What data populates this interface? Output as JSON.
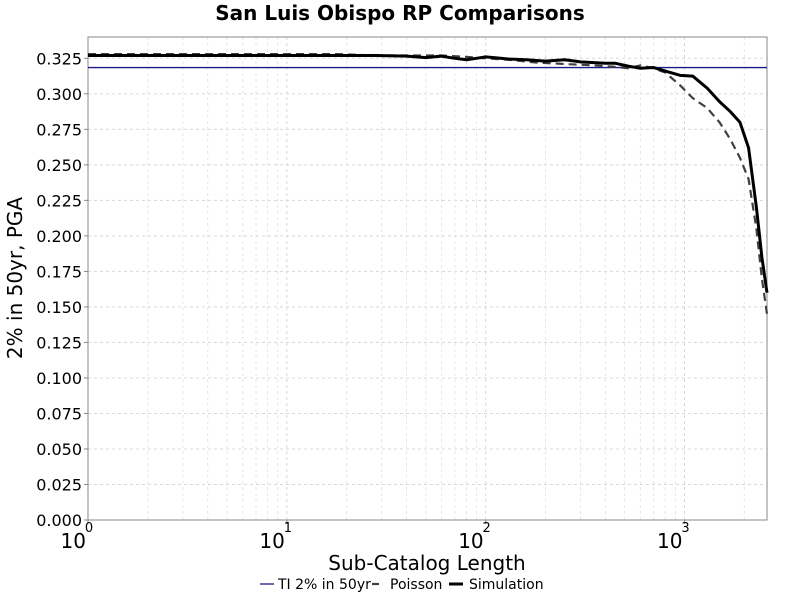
{
  "chart_data": {
    "type": "line",
    "title": "San Luis Obispo RP Comparisons",
    "xlabel": "Sub-Catalog Length",
    "ylabel": "2% in 50yr, PGA",
    "x_scale": "log",
    "xlim": [
      1,
      2600
    ],
    "ylim": [
      0,
      0.34
    ],
    "grid": true,
    "legend_position": "bottom",
    "yticks": [
      0.0,
      0.025,
      0.05,
      0.075,
      0.1,
      0.125,
      0.15,
      0.175,
      0.2,
      0.225,
      0.25,
      0.275,
      0.3,
      0.325
    ],
    "ytick_labels": [
      "0.000",
      "0.025",
      "0.050",
      "0.075",
      "0.100",
      "0.125",
      "0.150",
      "0.175",
      "0.200",
      "0.225",
      "0.250",
      "0.275",
      "0.300",
      "0.325"
    ],
    "xticks": [
      {
        "value": 1,
        "base": "10",
        "exp": "0"
      },
      {
        "value": 10,
        "base": "10",
        "exp": "1"
      },
      {
        "value": 100,
        "base": "10",
        "exp": "2"
      },
      {
        "value": 1000,
        "base": "10",
        "exp": "3"
      }
    ],
    "series": [
      {
        "name": "TI 2% in 50yr",
        "color": "#1a1a8c",
        "style": "solid",
        "x": [
          1,
          2600
        ],
        "y": [
          0.3185,
          0.3185
        ]
      },
      {
        "name": "Poisson",
        "color": "#404040",
        "style": "dashed",
        "x": [
          1,
          1.4,
          2,
          3,
          5,
          8,
          12,
          18,
          28,
          40,
          60,
          80,
          100,
          130,
          180,
          250,
          350,
          450,
          520,
          600,
          700,
          800,
          950,
          1100,
          1300,
          1500,
          1700,
          1900,
          2100,
          2300,
          2450,
          2600
        ],
        "y": [
          0.328,
          0.328,
          0.328,
          0.328,
          0.328,
          0.328,
          0.328,
          0.328,
          0.327,
          0.327,
          0.327,
          0.326,
          0.325,
          0.324,
          0.322,
          0.321,
          0.32,
          0.319,
          0.318,
          0.32,
          0.318,
          0.315,
          0.306,
          0.297,
          0.29,
          0.28,
          0.268,
          0.255,
          0.24,
          0.205,
          0.17,
          0.145
        ]
      },
      {
        "name": "Simulation",
        "color": "#000000",
        "style": "solid",
        "x": [
          1,
          1.5,
          2,
          3,
          5,
          8,
          12,
          18,
          28,
          40,
          50,
          60,
          70,
          80,
          90,
          100,
          110,
          130,
          160,
          200,
          250,
          300,
          350,
          400,
          450,
          520,
          600,
          700,
          800,
          950,
          1100,
          1300,
          1500,
          1700,
          1900,
          2100,
          2300,
          2450,
          2600
        ],
        "y": [
          0.327,
          0.327,
          0.327,
          0.327,
          0.327,
          0.327,
          0.327,
          0.327,
          0.327,
          0.3265,
          0.3255,
          0.3265,
          0.325,
          0.324,
          0.325,
          0.326,
          0.3255,
          0.3245,
          0.324,
          0.323,
          0.324,
          0.3225,
          0.322,
          0.3215,
          0.3215,
          0.3195,
          0.318,
          0.3185,
          0.316,
          0.313,
          0.3125,
          0.304,
          0.2945,
          0.2875,
          0.28,
          0.262,
          0.22,
          0.185,
          0.16
        ]
      }
    ]
  }
}
